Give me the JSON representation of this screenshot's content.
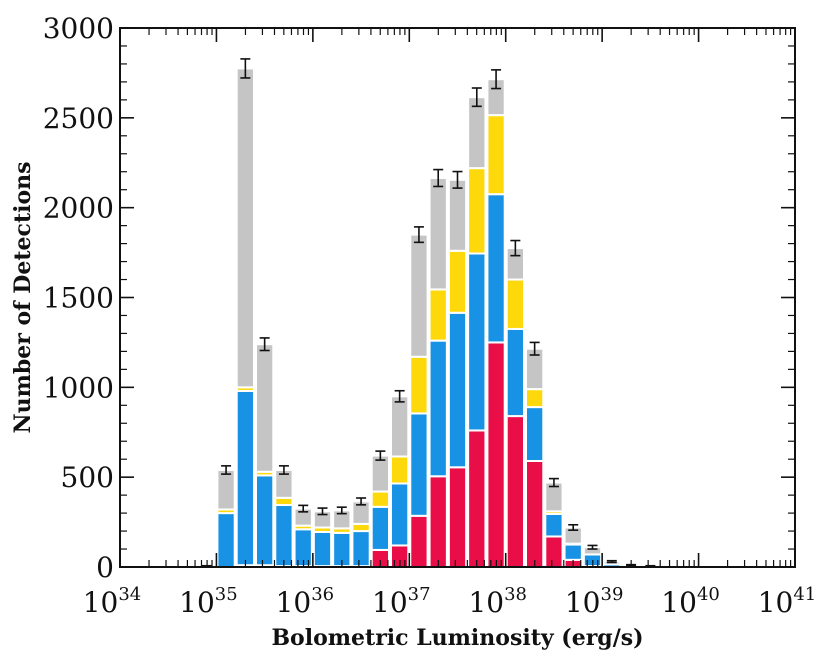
{
  "chart_data": {
    "type": "bar",
    "stacked": true,
    "title": "",
    "xlabel": "Bolometric Luminosity (erg/s)",
    "ylabel": "Number of Detections",
    "x_scale": "log",
    "xlim_log10": [
      34,
      41
    ],
    "ylim": [
      0,
      3000
    ],
    "yticks": [
      0,
      500,
      1000,
      1500,
      2000,
      2500,
      3000
    ],
    "xtick_labels": [
      {
        "base": "10",
        "exp": "34",
        "value": 34
      },
      {
        "base": "10",
        "exp": "35",
        "value": 35
      },
      {
        "base": "10",
        "exp": "36",
        "value": 36
      },
      {
        "base": "10",
        "exp": "37",
        "value": 37
      },
      {
        "base": "10",
        "exp": "38",
        "value": 38
      },
      {
        "base": "10",
        "exp": "39",
        "value": 39
      },
      {
        "base": "10",
        "exp": "40",
        "value": 40
      },
      {
        "base": "10",
        "exp": "41",
        "value": 41
      }
    ],
    "bin_width_log10": 0.2,
    "bin_starts_log10": [
      34.0,
      34.2,
      34.4,
      34.6,
      34.8,
      35.0,
      35.2,
      35.4,
      35.6,
      35.8,
      36.0,
      36.2,
      36.4,
      36.6,
      36.8,
      37.0,
      37.2,
      37.4,
      37.6,
      37.8,
      38.0,
      38.2,
      38.4,
      38.6,
      38.8,
      39.0,
      39.2,
      39.4,
      39.6,
      39.8,
      40.0,
      40.2,
      40.4,
      40.6,
      40.8
    ],
    "series": [
      {
        "name": "red",
        "color": "#ea0e48",
        "values": [
          0,
          0,
          0,
          0,
          0,
          0,
          10,
          10,
          5,
          5,
          5,
          5,
          5,
          95,
          120,
          285,
          505,
          555,
          760,
          1250,
          840,
          590,
          170,
          40,
          5,
          0,
          0,
          0,
          0,
          0,
          0,
          0,
          0,
          0,
          0
        ]
      },
      {
        "name": "blue",
        "color": "#1892e4",
        "values": [
          0,
          0,
          0,
          0,
          5,
          300,
          970,
          500,
          340,
          205,
          190,
          185,
          195,
          240,
          345,
          570,
          755,
          860,
          985,
          825,
          485,
          300,
          125,
          85,
          65,
          15,
          5,
          3,
          0,
          0,
          0,
          0,
          0,
          0,
          0
        ]
      },
      {
        "name": "yellow",
        "color": "#fdd90c",
        "values": [
          0,
          0,
          0,
          0,
          0,
          20,
          20,
          20,
          40,
          20,
          25,
          25,
          40,
          85,
          150,
          315,
          285,
          345,
          475,
          440,
          275,
          100,
          15,
          5,
          0,
          0,
          0,
          0,
          0,
          0,
          0,
          0,
          0,
          0,
          0
        ]
      },
      {
        "name": "gray",
        "color": "#c6c5c5",
        "values": [
          0,
          0,
          0,
          0,
          0,
          220,
          1775,
          710,
          155,
          95,
          90,
          100,
          125,
          200,
          335,
          680,
          620,
          395,
          395,
          200,
          175,
          225,
          160,
          90,
          40,
          15,
          5,
          2,
          0,
          0,
          0,
          0,
          0,
          0,
          0
        ]
      }
    ],
    "totals": [
      0,
      0,
      0,
      0,
      5,
      540,
      2775,
      1240,
      540,
      325,
      310,
      315,
      365,
      620,
      950,
      1850,
      2165,
      2155,
      2615,
      2715,
      1775,
      1215,
      470,
      220,
      110,
      30,
      10,
      5,
      0,
      0,
      0,
      0,
      0,
      0,
      0
    ],
    "error_bars": [
      0,
      0,
      0,
      0,
      2,
      23,
      53,
      35,
      23,
      18,
      18,
      18,
      19,
      25,
      31,
      43,
      47,
      46,
      51,
      52,
      42,
      35,
      22,
      15,
      10,
      5,
      3,
      2,
      0,
      0,
      0,
      0,
      0,
      0,
      0
    ],
    "legend": "none",
    "grid": false
  }
}
